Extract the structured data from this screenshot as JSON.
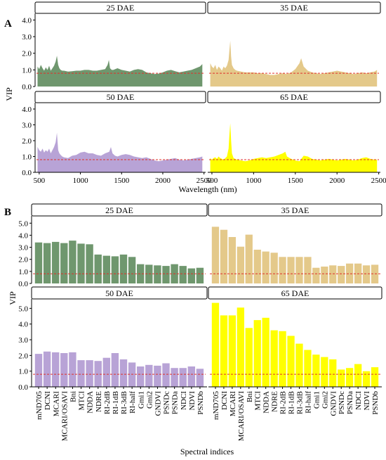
{
  "figure": {
    "panel_a_label": "A",
    "panel_b_label": "B"
  },
  "chart_data": [
    {
      "type": "area",
      "panel": "A",
      "ylabel": "VIP",
      "xlabel": "Wavelength (nm)",
      "xlim": [
        450,
        2520
      ],
      "ylim": [
        0,
        4.4
      ],
      "xticks": [
        500,
        1000,
        1500,
        2000,
        2500
      ],
      "yticks": [
        0.0,
        1.0,
        2.0,
        3.0,
        4.0
      ],
      "ytick_labels": [
        "0.0",
        "1.0",
        "2.0",
        "3.0",
        "4.0"
      ],
      "threshold": 0.8,
      "threshold_color": "#e0302a",
      "facets": [
        {
          "title": "25 DAE",
          "color": "#6f976e",
          "x": [
            480,
            500,
            520,
            540,
            560,
            580,
            600,
            620,
            640,
            660,
            680,
            700,
            715,
            730,
            745,
            760,
            780,
            800,
            850,
            900,
            950,
            1000,
            1050,
            1100,
            1150,
            1200,
            1250,
            1300,
            1330,
            1345,
            1360,
            1380,
            1400,
            1450,
            1500,
            1550,
            1600,
            1650,
            1700,
            1750,
            1800,
            1850,
            1900,
            1950,
            2000,
            2050,
            2100,
            2150,
            2200,
            2250,
            2300,
            2350,
            2400,
            2450,
            2480
          ],
          "values": [
            1.2,
            1.05,
            1.3,
            1.1,
            0.95,
            1.15,
            1.0,
            1.25,
            0.95,
            1.1,
            1.25,
            1.5,
            1.85,
            1.3,
            1.1,
            1.0,
            0.95,
            0.95,
            0.9,
            0.92,
            0.95,
            0.95,
            1.0,
            1.0,
            0.95,
            0.95,
            1.0,
            1.05,
            1.3,
            1.6,
            1.1,
            1.0,
            1.0,
            1.1,
            1.0,
            0.95,
            0.9,
            1.0,
            1.05,
            1.0,
            0.85,
            0.8,
            0.75,
            0.78,
            0.85,
            0.95,
            1.0,
            0.92,
            0.85,
            0.9,
            0.95,
            1.0,
            1.1,
            1.2,
            1.35
          ]
        },
        {
          "title": "35 DAE",
          "color": "#e4c98a",
          "x": [
            480,
            500,
            520,
            540,
            560,
            580,
            600,
            620,
            640,
            660,
            680,
            700,
            710,
            720,
            730,
            740,
            760,
            780,
            800,
            850,
            900,
            950,
            1000,
            1050,
            1100,
            1150,
            1200,
            1250,
            1300,
            1350,
            1400,
            1450,
            1500,
            1550,
            1570,
            1600,
            1650,
            1700,
            1750,
            1800,
            1850,
            1900,
            1950,
            2000,
            2050,
            2100,
            2150,
            2200,
            2250,
            2300,
            2350,
            2400,
            2450,
            2480
          ],
          "values": [
            1.4,
            1.2,
            1.1,
            1.3,
            1.0,
            1.2,
            1.1,
            0.95,
            1.2,
            1.1,
            1.25,
            1.6,
            2.2,
            2.75,
            1.8,
            1.3,
            1.1,
            1.0,
            0.95,
            0.9,
            0.85,
            0.85,
            0.85,
            0.8,
            0.8,
            0.75,
            0.7,
            0.7,
            0.75,
            0.8,
            0.75,
            0.85,
            1.05,
            1.4,
            1.7,
            1.2,
            0.95,
            0.85,
            0.8,
            0.75,
            0.8,
            0.85,
            0.9,
            0.95,
            0.9,
            0.85,
            0.8,
            0.75,
            0.8,
            0.85,
            0.8,
            0.85,
            0.9,
            1.0
          ]
        },
        {
          "title": "50 DAE",
          "color": "#b8a3d6",
          "x": [
            480,
            500,
            520,
            540,
            560,
            580,
            600,
            620,
            640,
            660,
            680,
            700,
            715,
            730,
            745,
            760,
            780,
            800,
            850,
            900,
            950,
            1000,
            1050,
            1100,
            1150,
            1200,
            1250,
            1300,
            1350,
            1370,
            1390,
            1420,
            1450,
            1500,
            1550,
            1600,
            1650,
            1700,
            1750,
            1800,
            1850,
            1900,
            1950,
            2000,
            2050,
            2100,
            2150,
            2200,
            2250,
            2300,
            2350,
            2400,
            2450,
            2480
          ],
          "values": [
            1.6,
            1.4,
            1.3,
            1.5,
            1.25,
            1.4,
            1.3,
            1.5,
            1.2,
            1.4,
            1.6,
            1.9,
            2.5,
            1.4,
            1.2,
            1.1,
            1.0,
            0.95,
            0.9,
            1.05,
            1.1,
            1.25,
            1.3,
            1.2,
            1.2,
            1.1,
            1.05,
            1.2,
            1.3,
            1.6,
            1.2,
            1.05,
            1.0,
            1.1,
            1.15,
            1.1,
            1.0,
            0.95,
            0.9,
            0.95,
            0.85,
            0.75,
            0.7,
            0.75,
            0.8,
            0.85,
            0.9,
            0.8,
            0.75,
            0.8,
            0.85,
            0.9,
            0.95,
            1.0
          ]
        },
        {
          "title": "65 DAE",
          "color": "#ffff00",
          "x": [
            480,
            500,
            520,
            540,
            560,
            580,
            600,
            620,
            640,
            660,
            680,
            700,
            710,
            720,
            730,
            740,
            760,
            780,
            800,
            850,
            900,
            950,
            1000,
            1050,
            1100,
            1150,
            1200,
            1250,
            1300,
            1350,
            1380,
            1400,
            1450,
            1500,
            1550,
            1600,
            1650,
            1700,
            1750,
            1800,
            1850,
            1900,
            1950,
            2000,
            2050,
            2100,
            2150,
            2200,
            2250,
            2300,
            2350,
            2400,
            2450,
            2480
          ],
          "values": [
            0.9,
            0.8,
            0.9,
            0.95,
            0.85,
            1.0,
            0.9,
            0.85,
            0.8,
            0.9,
            1.0,
            1.5,
            2.4,
            3.1,
            2.0,
            1.2,
            0.9,
            0.85,
            0.8,
            0.75,
            0.7,
            0.75,
            0.85,
            0.9,
            0.95,
            0.9,
            0.95,
            1.0,
            1.1,
            1.2,
            1.3,
            1.0,
            0.85,
            0.75,
            0.7,
            1.05,
            1.0,
            0.85,
            0.8,
            0.75,
            0.8,
            0.85,
            0.8,
            0.75,
            0.8,
            0.85,
            0.8,
            0.75,
            0.8,
            0.9,
            0.95,
            0.85,
            0.8,
            0.8
          ]
        }
      ]
    },
    {
      "type": "bar",
      "panel": "B",
      "ylabel": "VIP",
      "xlabel": "Spectral indices",
      "ylim": [
        0,
        5.6
      ],
      "yticks": [
        0.0,
        1.0,
        2.0,
        3.0,
        4.0,
        5.0
      ],
      "ytick_labels": [
        "0.0",
        "1.0",
        "2.0",
        "3.0",
        "4.0",
        "5.0"
      ],
      "threshold": 0.8,
      "threshold_color": "#e0302a",
      "categories": [
        "mND705",
        "DCNI",
        "MCARI",
        "MCARI/OSAVI",
        "Bni",
        "MTCI",
        "NDDA",
        "NDRE",
        "RI-2dB",
        "RI-1dB",
        "RI-3dB",
        "RI-half",
        "Gmi1",
        "Gmi2",
        "GNDVI",
        "PSNDc",
        "PSNDa",
        "NDCI",
        "NDVI",
        "PSNDb"
      ],
      "facets": [
        {
          "title": "25 DAE",
          "color": "#6f976e",
          "values": [
            3.4,
            3.35,
            3.45,
            3.35,
            3.55,
            3.3,
            3.25,
            2.4,
            2.3,
            2.25,
            2.4,
            2.2,
            1.6,
            1.55,
            1.5,
            1.45,
            1.6,
            1.45,
            1.25,
            1.3
          ]
        },
        {
          "title": "35 DAE",
          "color": "#e4c98a",
          "values": [
            4.7,
            4.45,
            3.85,
            3.05,
            4.05,
            2.8,
            2.65,
            2.55,
            2.2,
            2.2,
            2.2,
            2.2,
            1.3,
            1.4,
            1.5,
            1.45,
            1.65,
            1.65,
            1.5,
            1.55
          ]
        },
        {
          "title": "50 DAE",
          "color": "#b8a3d6",
          "values": [
            2.1,
            2.25,
            2.2,
            2.15,
            2.2,
            1.7,
            1.7,
            1.65,
            1.85,
            2.15,
            1.75,
            1.55,
            1.3,
            1.4,
            1.35,
            1.5,
            1.2,
            1.2,
            1.3,
            1.15
          ]
        },
        {
          "title": "65 DAE",
          "color": "#ffff00",
          "values": [
            5.35,
            4.55,
            4.55,
            5.05,
            3.75,
            4.25,
            4.4,
            3.6,
            3.55,
            3.25,
            2.75,
            2.35,
            2.05,
            1.9,
            1.75,
            1.1,
            1.2,
            1.45,
            1.0,
            1.25
          ]
        }
      ]
    }
  ]
}
